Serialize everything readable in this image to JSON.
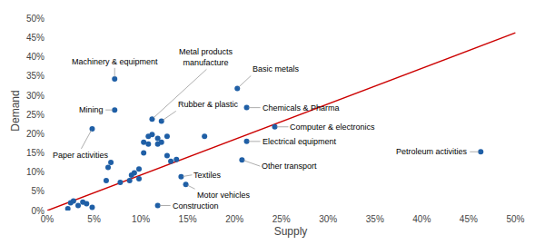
{
  "chart_data": {
    "type": "scatter",
    "xlabel": "Supply",
    "ylabel": "Demand",
    "series": [
      {
        "type": "scatter",
        "color": "#1F5FA6",
        "x": [
          0.022,
          0.025,
          0.028,
          0.033,
          0.038,
          0.042,
          0.048,
          0.063,
          0.065,
          0.068,
          0.078,
          0.088,
          0.09,
          0.093,
          0.098,
          0.098,
          0.103,
          0.103,
          0.108,
          0.108,
          0.112,
          0.118,
          0.118,
          0.122,
          0.128,
          0.128,
          0.132,
          0.138,
          0.168,
          0.463,
          0.203,
          0.213,
          0.243,
          0.213,
          0.208,
          0.122,
          0.112,
          0.072,
          0.072,
          0.048,
          0.143,
          0.148,
          0.118
        ],
        "values": [
          0.005,
          0.02,
          0.025,
          0.013,
          0.022,
          0.018,
          0.008,
          0.078,
          0.112,
          0.125,
          0.073,
          0.078,
          0.092,
          0.098,
          0.083,
          0.108,
          0.15,
          0.178,
          0.193,
          0.173,
          0.198,
          0.188,
          0.173,
          0.178,
          0.193,
          0.143,
          0.128,
          0.133,
          0.193,
          0.153,
          0.318,
          0.268,
          0.218,
          0.18,
          0.132,
          0.233,
          0.238,
          0.343,
          0.262,
          0.213,
          0.088,
          0.068,
          0.013
        ]
      },
      {
        "type": "line",
        "color": "#CC0000",
        "x": [
          0.0,
          0.5
        ],
        "values": [
          0.0,
          0.463
        ]
      }
    ],
    "annotations": [
      {
        "text": "Petroleum activities",
        "x": 0.463,
        "y": 0.153
      },
      {
        "text": "Basic metals",
        "x": 0.203,
        "y": 0.318
      },
      {
        "text": "Chemicals & Pharma",
        "x": 0.213,
        "y": 0.268
      },
      {
        "text": "Computer & electronics",
        "x": 0.243,
        "y": 0.218
      },
      {
        "text": "Electrical equipment",
        "x": 0.213,
        "y": 0.18
      },
      {
        "text": "Other transport",
        "x": 0.208,
        "y": 0.132
      },
      {
        "text": "Rubber & plastic",
        "x": 0.122,
        "y": 0.233
      },
      {
        "text": "Metal products\nmanufacture",
        "x": 0.112,
        "y": 0.238
      },
      {
        "text": "Machinery & equipment",
        "x": 0.072,
        "y": 0.343
      },
      {
        "text": "Mining",
        "x": 0.072,
        "y": 0.262
      },
      {
        "text": "Paper activities",
        "x": 0.048,
        "y": 0.213
      },
      {
        "text": "Textiles",
        "x": 0.143,
        "y": 0.088
      },
      {
        "text": "Motor vehicles",
        "x": 0.148,
        "y": 0.068
      },
      {
        "text": "Construction",
        "x": 0.118,
        "y": 0.013
      }
    ],
    "xlim": [
      0,
      0.52
    ],
    "ylim": [
      0,
      0.52
    ],
    "xticks": [
      {
        "value": 0.0,
        "label": "0%"
      },
      {
        "value": 0.05,
        "label": "5%"
      },
      {
        "value": 0.1,
        "label": "10%"
      },
      {
        "value": 0.15,
        "label": "15%"
      },
      {
        "value": 0.2,
        "label": "20%"
      },
      {
        "value": 0.25,
        "label": "25%"
      },
      {
        "value": 0.3,
        "label": "30%"
      },
      {
        "value": 0.35,
        "label": "35%"
      },
      {
        "value": 0.4,
        "label": "40%"
      },
      {
        "value": 0.45,
        "label": "45%"
      },
      {
        "value": 0.5,
        "label": "50%"
      }
    ],
    "yticks": [
      {
        "value": 0.0,
        "label": "0%"
      },
      {
        "value": 0.05,
        "label": "5%"
      },
      {
        "value": 0.1,
        "label": "10%"
      },
      {
        "value": 0.15,
        "label": "15%"
      },
      {
        "value": 0.2,
        "label": "20%"
      },
      {
        "value": 0.25,
        "label": "25%"
      },
      {
        "value": 0.3,
        "label": "30%"
      },
      {
        "value": 0.35,
        "label": "35%"
      },
      {
        "value": 0.4,
        "label": "40%"
      },
      {
        "value": 0.45,
        "label": "45%"
      },
      {
        "value": 0.5,
        "label": "50%"
      }
    ],
    "grid": false
  }
}
